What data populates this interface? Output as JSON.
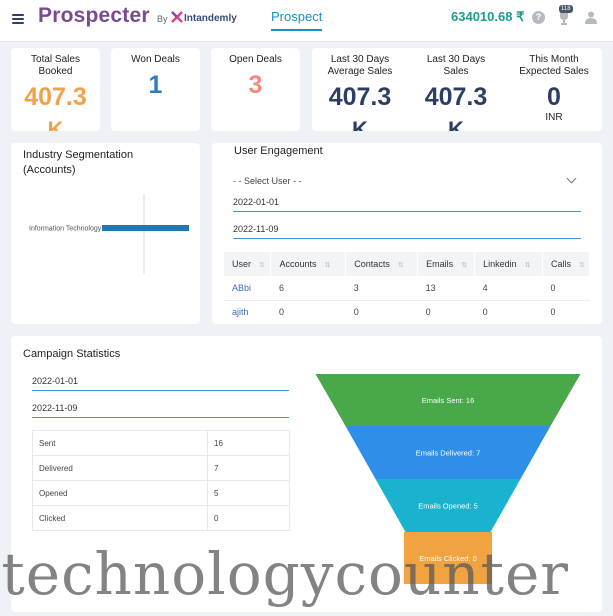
{
  "header": {
    "logo_text": "Prospecter",
    "by_text": "By",
    "brand_name": "Intandemly",
    "active_tab": "Prospect",
    "balance": "634010.68 ₹",
    "notification_count": "118",
    "icons": [
      "menu-icon",
      "help-icon",
      "trophy-icon",
      "user-icon"
    ]
  },
  "stats": [
    {
      "title": "Total Sales Booked",
      "value": "407.3",
      "unit_partial": "K",
      "color": "#f0a248"
    },
    {
      "title": "Won Deals",
      "value": "1",
      "color": "#2f7dbd"
    },
    {
      "title": "Open Deals",
      "value": "3",
      "color": "#f08a80"
    },
    {
      "title": "Last 30 Days Average Sales",
      "value": "407.3",
      "unit_partial": "K",
      "color": "#2c3e66"
    },
    {
      "title": "Last 30 Days Sales",
      "value": "407.3",
      "unit_partial": "K",
      "color": "#2c3e66"
    },
    {
      "title": "This Month Expected Sales",
      "value": "0",
      "unit": "INR",
      "color": "#2c3e66"
    }
  ],
  "industry": {
    "title": "Industry Segmentation (Accounts)",
    "chart_data": {
      "type": "bar",
      "orientation": "horizontal",
      "categories": [
        "Information Technology"
      ],
      "values": [
        1
      ],
      "title": "",
      "xlabel": "",
      "ylabel": ""
    }
  },
  "engagement": {
    "title": "User Engagement",
    "select_placeholder": "- - Select User - -",
    "start_date": "2022-01-01",
    "end_date": "2022-11-09",
    "columns": [
      "User",
      "Accounts",
      "Contacts",
      "Emails",
      "Linkedin",
      "Calls"
    ],
    "rows": [
      [
        "ABbi",
        "6",
        "3",
        "13",
        "4",
        "0"
      ],
      [
        "ajith",
        "0",
        "0",
        "0",
        "0",
        "0"
      ]
    ]
  },
  "campaign": {
    "title": "Campaign Statistics",
    "start_date": "2022-01-01",
    "end_date": "2022-11-09",
    "table": [
      [
        "Sent",
        "16"
      ],
      [
        "Delivered",
        "7"
      ],
      [
        "Opened",
        "5"
      ],
      [
        "Clicked",
        "0"
      ]
    ],
    "funnel": {
      "stages": [
        {
          "label": "Emails Sent: 16",
          "value": 16,
          "color": "#48a84a"
        },
        {
          "label": "Emails Delivered: 7",
          "value": 7,
          "color": "#2f8ee8"
        },
        {
          "label": "Emails Opened: 5",
          "value": 5,
          "color": "#1ab3cf"
        },
        {
          "label": "Emails Clicked: 0",
          "value": 0,
          "color": "#f0a340"
        }
      ]
    }
  },
  "watermark": ".technologycounter"
}
